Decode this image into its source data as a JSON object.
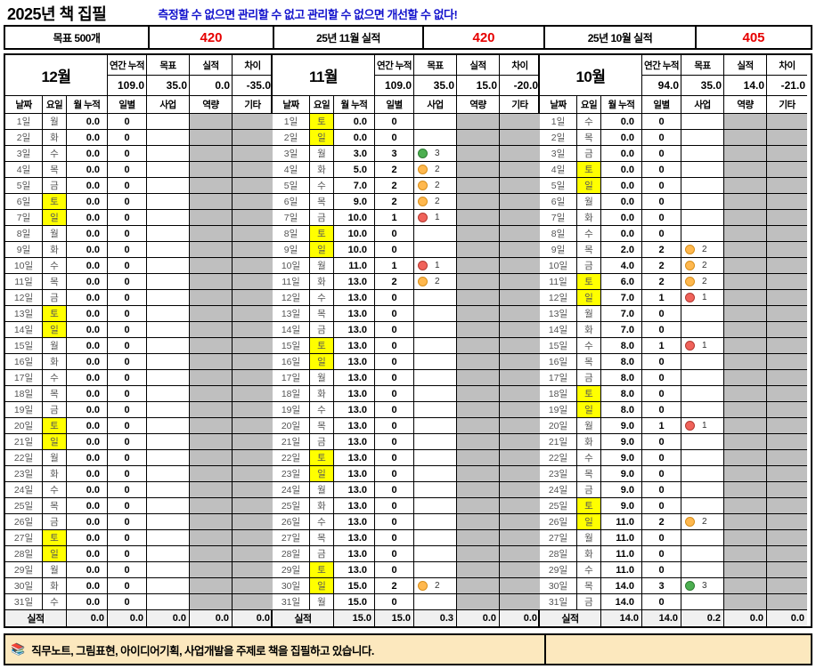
{
  "title": "2025년 책 집필",
  "quote": "측정할 수 없으면 관리할 수 없고 관리할 수 없으면 개선할 수 없다!",
  "banner": {
    "goal_label": "목표 500개",
    "goal_value": "420",
    "nov_label": "25년 11월 실적",
    "nov_value": "420",
    "oct_label": "25년 10월 실적",
    "oct_value": "405"
  },
  "labels": {
    "annual": "연간 누적",
    "target": "목표",
    "actual": "실적",
    "diff": "차이",
    "columns": [
      "날짜",
      "요일",
      "월 누적",
      "일별",
      "사업",
      "역량",
      "기타"
    ],
    "totals": "실적"
  },
  "colors": {
    "accent_red": "#E60000",
    "quote_blue": "#1212CC",
    "weekend_yellow": "#FFFF00",
    "empty_gray": "#BFBFBF",
    "totals_bg": "#F0F0F0",
    "footer_bg": "#FCE8BE",
    "marker_green": "#4CAF50",
    "marker_orange": "#FFB84E",
    "marker_red": "#F0625A"
  },
  "months": [
    {
      "name": "12월",
      "annual": "109.0",
      "target": "35.0",
      "actual": "0.0",
      "diff": "-35.0",
      "rows": [
        [
          "1일",
          "월",
          0,
          "0.0",
          "0",
          "",
          ""
        ],
        [
          "2일",
          "화",
          0,
          "0.0",
          "0",
          "",
          ""
        ],
        [
          "3일",
          "수",
          0,
          "0.0",
          "0",
          "",
          ""
        ],
        [
          "4일",
          "목",
          0,
          "0.0",
          "0",
          "",
          ""
        ],
        [
          "5일",
          "금",
          0,
          "0.0",
          "0",
          "",
          ""
        ],
        [
          "6일",
          "토",
          1,
          "0.0",
          "0",
          "",
          ""
        ],
        [
          "7일",
          "일",
          1,
          "0.0",
          "0",
          "",
          ""
        ],
        [
          "8일",
          "월",
          0,
          "0.0",
          "0",
          "",
          ""
        ],
        [
          "9일",
          "화",
          0,
          "0.0",
          "0",
          "",
          ""
        ],
        [
          "10일",
          "수",
          0,
          "0.0",
          "0",
          "",
          ""
        ],
        [
          "11일",
          "목",
          0,
          "0.0",
          "0",
          "",
          ""
        ],
        [
          "12일",
          "금",
          0,
          "0.0",
          "0",
          "",
          ""
        ],
        [
          "13일",
          "토",
          1,
          "0.0",
          "0",
          "",
          ""
        ],
        [
          "14일",
          "일",
          1,
          "0.0",
          "0",
          "",
          ""
        ],
        [
          "15일",
          "월",
          0,
          "0.0",
          "0",
          "",
          ""
        ],
        [
          "16일",
          "화",
          0,
          "0.0",
          "0",
          "",
          ""
        ],
        [
          "17일",
          "수",
          0,
          "0.0",
          "0",
          "",
          ""
        ],
        [
          "18일",
          "목",
          0,
          "0.0",
          "0",
          "",
          ""
        ],
        [
          "19일",
          "금",
          0,
          "0.0",
          "0",
          "",
          ""
        ],
        [
          "20일",
          "토",
          1,
          "0.0",
          "0",
          "",
          ""
        ],
        [
          "21일",
          "일",
          1,
          "0.0",
          "0",
          "",
          ""
        ],
        [
          "22일",
          "월",
          0,
          "0.0",
          "0",
          "",
          ""
        ],
        [
          "23일",
          "화",
          0,
          "0.0",
          "0",
          "",
          ""
        ],
        [
          "24일",
          "수",
          0,
          "0.0",
          "0",
          "",
          ""
        ],
        [
          "25일",
          "목",
          0,
          "0.0",
          "0",
          "",
          ""
        ],
        [
          "26일",
          "금",
          0,
          "0.0",
          "0",
          "",
          ""
        ],
        [
          "27일",
          "토",
          1,
          "0.0",
          "0",
          "",
          ""
        ],
        [
          "28일",
          "일",
          1,
          "0.0",
          "0",
          "",
          ""
        ],
        [
          "29일",
          "월",
          0,
          "0.0",
          "0",
          "",
          ""
        ],
        [
          "30일",
          "화",
          0,
          "0.0",
          "0",
          "",
          ""
        ],
        [
          "31일",
          "수",
          0,
          "0.0",
          "0",
          "",
          ""
        ]
      ],
      "totals": [
        "0.0",
        "0.0",
        "0.0",
        "0.0",
        "0.0"
      ]
    },
    {
      "name": "11월",
      "annual": "109.0",
      "target": "35.0",
      "actual": "15.0",
      "diff": "-20.0",
      "rows": [
        [
          "1일",
          "토",
          1,
          "0.0",
          "0",
          "",
          ""
        ],
        [
          "2일",
          "일",
          1,
          "0.0",
          "0",
          "",
          ""
        ],
        [
          "3일",
          "월",
          0,
          "3.0",
          "3",
          "green",
          "3"
        ],
        [
          "4일",
          "화",
          0,
          "5.0",
          "2",
          "orange",
          "2"
        ],
        [
          "5일",
          "수",
          0,
          "7.0",
          "2",
          "orange",
          "2"
        ],
        [
          "6일",
          "목",
          0,
          "9.0",
          "2",
          "orange",
          "2"
        ],
        [
          "7일",
          "금",
          0,
          "10.0",
          "1",
          "red",
          "1"
        ],
        [
          "8일",
          "토",
          1,
          "10.0",
          "0",
          "",
          ""
        ],
        [
          "9일",
          "일",
          1,
          "10.0",
          "0",
          "",
          ""
        ],
        [
          "10일",
          "월",
          0,
          "11.0",
          "1",
          "red",
          "1"
        ],
        [
          "11일",
          "화",
          0,
          "13.0",
          "2",
          "orange",
          "2"
        ],
        [
          "12일",
          "수",
          0,
          "13.0",
          "0",
          "",
          ""
        ],
        [
          "13일",
          "목",
          0,
          "13.0",
          "0",
          "",
          ""
        ],
        [
          "14일",
          "금",
          0,
          "13.0",
          "0",
          "",
          ""
        ],
        [
          "15일",
          "토",
          1,
          "13.0",
          "0",
          "",
          ""
        ],
        [
          "16일",
          "일",
          1,
          "13.0",
          "0",
          "",
          ""
        ],
        [
          "17일",
          "월",
          0,
          "13.0",
          "0",
          "",
          ""
        ],
        [
          "18일",
          "화",
          0,
          "13.0",
          "0",
          "",
          ""
        ],
        [
          "19일",
          "수",
          0,
          "13.0",
          "0",
          "",
          ""
        ],
        [
          "20일",
          "목",
          0,
          "13.0",
          "0",
          "",
          ""
        ],
        [
          "21일",
          "금",
          0,
          "13.0",
          "0",
          "",
          ""
        ],
        [
          "22일",
          "토",
          1,
          "13.0",
          "0",
          "",
          ""
        ],
        [
          "23일",
          "일",
          1,
          "13.0",
          "0",
          "",
          ""
        ],
        [
          "24일",
          "월",
          0,
          "13.0",
          "0",
          "",
          ""
        ],
        [
          "25일",
          "화",
          0,
          "13.0",
          "0",
          "",
          ""
        ],
        [
          "26일",
          "수",
          0,
          "13.0",
          "0",
          "",
          ""
        ],
        [
          "27일",
          "목",
          0,
          "13.0",
          "0",
          "",
          ""
        ],
        [
          "28일",
          "금",
          0,
          "13.0",
          "0",
          "",
          ""
        ],
        [
          "29일",
          "토",
          1,
          "13.0",
          "0",
          "",
          ""
        ],
        [
          "30일",
          "일",
          1,
          "15.0",
          "2",
          "orange",
          "2"
        ],
        [
          "31일",
          "월",
          0,
          "15.0",
          "0",
          "",
          ""
        ]
      ],
      "totals": [
        "15.0",
        "15.0",
        "0.3",
        "0.0",
        "0.0"
      ]
    },
    {
      "name": "10월",
      "annual": "94.0",
      "target": "35.0",
      "actual": "14.0",
      "diff": "-21.0",
      "rows": [
        [
          "1일",
          "수",
          0,
          "0.0",
          "0",
          "",
          ""
        ],
        [
          "2일",
          "목",
          0,
          "0.0",
          "0",
          "",
          ""
        ],
        [
          "3일",
          "금",
          0,
          "0.0",
          "0",
          "",
          ""
        ],
        [
          "4일",
          "토",
          1,
          "0.0",
          "0",
          "",
          ""
        ],
        [
          "5일",
          "일",
          1,
          "0.0",
          "0",
          "",
          ""
        ],
        [
          "6일",
          "월",
          0,
          "0.0",
          "0",
          "",
          ""
        ],
        [
          "7일",
          "화",
          0,
          "0.0",
          "0",
          "",
          ""
        ],
        [
          "8일",
          "수",
          0,
          "0.0",
          "0",
          "",
          ""
        ],
        [
          "9일",
          "목",
          0,
          "2.0",
          "2",
          "orange",
          "2"
        ],
        [
          "10일",
          "금",
          0,
          "4.0",
          "2",
          "orange",
          "2"
        ],
        [
          "11일",
          "토",
          1,
          "6.0",
          "2",
          "orange",
          "2"
        ],
        [
          "12일",
          "일",
          1,
          "7.0",
          "1",
          "red",
          "1"
        ],
        [
          "13일",
          "월",
          0,
          "7.0",
          "0",
          "",
          ""
        ],
        [
          "14일",
          "화",
          0,
          "7.0",
          "0",
          "",
          ""
        ],
        [
          "15일",
          "수",
          0,
          "8.0",
          "1",
          "red",
          "1"
        ],
        [
          "16일",
          "목",
          0,
          "8.0",
          "0",
          "",
          ""
        ],
        [
          "17일",
          "금",
          0,
          "8.0",
          "0",
          "",
          ""
        ],
        [
          "18일",
          "토",
          1,
          "8.0",
          "0",
          "",
          ""
        ],
        [
          "19일",
          "일",
          1,
          "8.0",
          "0",
          "",
          ""
        ],
        [
          "20일",
          "월",
          0,
          "9.0",
          "1",
          "red",
          "1"
        ],
        [
          "21일",
          "화",
          0,
          "9.0",
          "0",
          "",
          ""
        ],
        [
          "22일",
          "수",
          0,
          "9.0",
          "0",
          "",
          ""
        ],
        [
          "23일",
          "목",
          0,
          "9.0",
          "0",
          "",
          ""
        ],
        [
          "24일",
          "금",
          0,
          "9.0",
          "0",
          "",
          ""
        ],
        [
          "25일",
          "토",
          1,
          "9.0",
          "0",
          "",
          ""
        ],
        [
          "26일",
          "일",
          1,
          "11.0",
          "2",
          "orange",
          "2"
        ],
        [
          "27일",
          "월",
          0,
          "11.0",
          "0",
          "",
          ""
        ],
        [
          "28일",
          "화",
          0,
          "11.0",
          "0",
          "",
          ""
        ],
        [
          "29일",
          "수",
          0,
          "11.0",
          "0",
          "",
          ""
        ],
        [
          "30일",
          "목",
          0,
          "14.0",
          "3",
          "green",
          "3"
        ],
        [
          "31일",
          "금",
          0,
          "14.0",
          "0",
          "",
          ""
        ]
      ],
      "totals": [
        "14.0",
        "14.0",
        "0.2",
        "0.0",
        "0.0"
      ]
    }
  ],
  "footer": {
    "icon": "📚",
    "text": "직무노트, 그림표현, 아이디어기획, 사업개발을 주제로 책을 집필하고 있습니다."
  }
}
